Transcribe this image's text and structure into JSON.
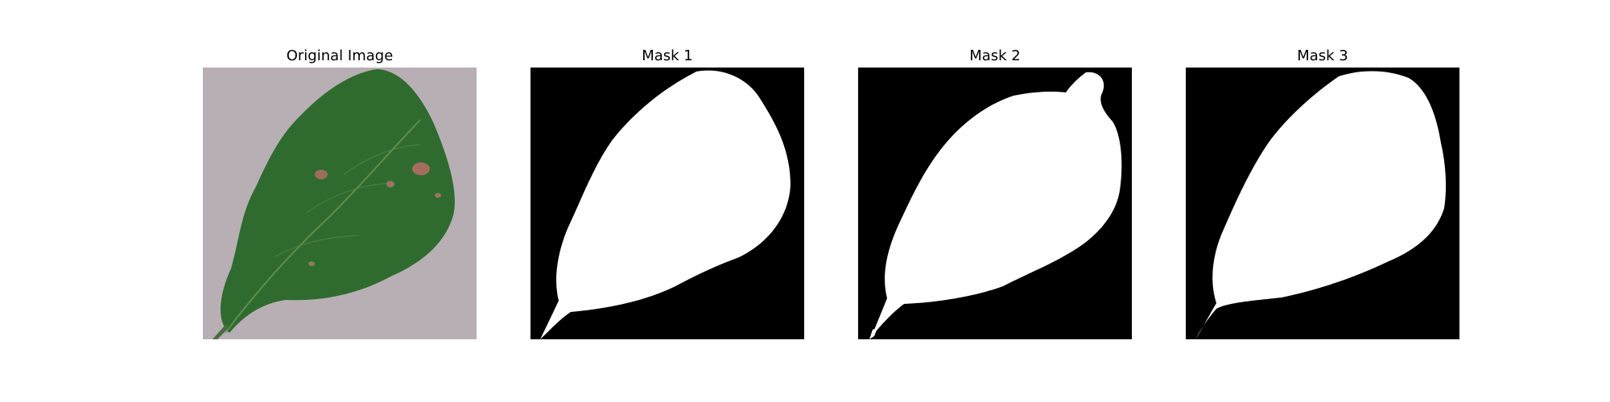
{
  "panels": [
    {
      "title": "Original Image"
    },
    {
      "title": "Mask 1"
    },
    {
      "title": "Mask 2"
    },
    {
      "title": "Mask 3"
    }
  ],
  "colors": {
    "background": "#ffffff",
    "table_surface": "#b7afb4",
    "leaf": "#2f6b2f",
    "leaf_dark": "#1f4f22",
    "mask_background": "#000000",
    "mask_foreground": "#ffffff"
  }
}
